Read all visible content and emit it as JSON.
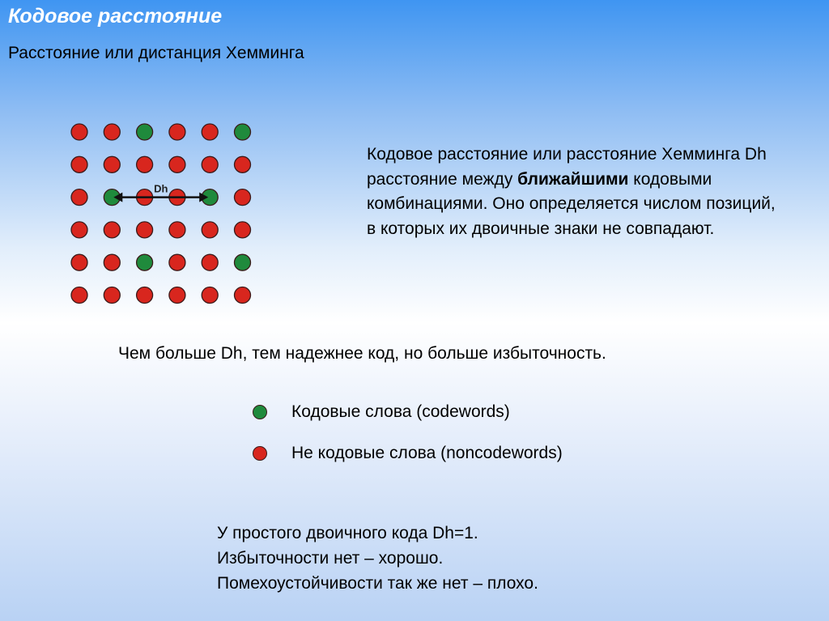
{
  "title": "Кодовое расстояние",
  "subtitle": "Расстояние или дистанция Хемминга",
  "diagram": {
    "arrow_label": "Dh",
    "grid": [
      [
        0,
        0,
        1,
        0,
        0,
        1
      ],
      [
        0,
        0,
        0,
        0,
        0,
        0
      ],
      [
        0,
        1,
        0,
        0,
        1,
        0
      ],
      [
        0,
        0,
        0,
        0,
        0,
        0
      ],
      [
        0,
        0,
        1,
        0,
        0,
        1
      ],
      [
        0,
        0,
        0,
        0,
        0,
        0
      ]
    ],
    "arrow": {
      "row": 2,
      "from_col": 1,
      "to_col": 4
    },
    "colors": {
      "codeword": "#1f8a3c",
      "noncodeword": "#d8261e"
    }
  },
  "description": {
    "before_bold": "Кодовое расстояние или расстояние Хемминга Dh расстояние между ",
    "bold": "ближайшими",
    "after_bold": " кодовыми комбинациями. Оно определяется числом позиций, в которых их двоичные знаки не совпадают."
  },
  "summary": "Чем больше Dh, тем надежнее код, но больше избыточность.",
  "legend": [
    {
      "label": "Кодовые слова (codewords)",
      "color": "#1f8a3c"
    },
    {
      "label": "Не кодовые слова (noncodewords)",
      "color": "#d8261e"
    }
  ],
  "note": [
    "У простого двоичного кода Dh=1.",
    "Избыточности нет – хорошо.",
    "Помехоустойчивости так же нет – плохо."
  ]
}
